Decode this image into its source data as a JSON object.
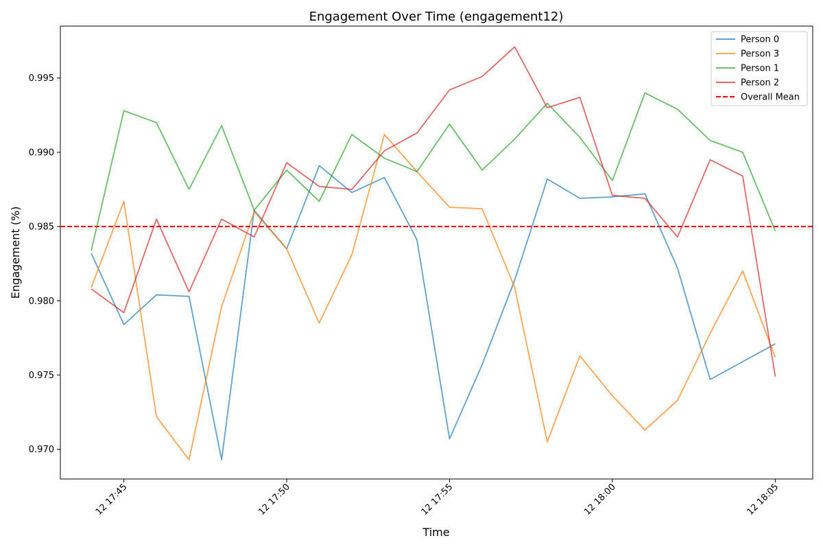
{
  "chart_data": {
    "type": "line",
    "title": "Engagement Over Time (engagement12)",
    "xlabel": "Time",
    "ylabel": "Engagement (%)",
    "x_minutes": [
      44,
      45,
      46,
      47,
      48,
      49,
      50,
      51,
      52,
      53,
      54,
      55,
      56,
      57,
      58,
      59,
      60,
      61,
      62,
      63,
      64,
      65
    ],
    "xlim": [
      43.05,
      66.15
    ],
    "ylim": [
      0.968,
      0.9985
    ],
    "x_ticks": [
      {
        "minute": 45,
        "label": "12 17:45"
      },
      {
        "minute": 50,
        "label": "12 17:50"
      },
      {
        "minute": 55,
        "label": "12 17:55"
      },
      {
        "minute": 60,
        "label": "12 18:00"
      },
      {
        "minute": 65,
        "label": "12 18:05"
      }
    ],
    "y_ticks": [
      {
        "value": 0.97,
        "label": "0.970"
      },
      {
        "value": 0.975,
        "label": "0.975"
      },
      {
        "value": 0.98,
        "label": "0.980"
      },
      {
        "value": 0.985,
        "label": "0.985"
      },
      {
        "value": 0.99,
        "label": "0.990"
      },
      {
        "value": 0.995,
        "label": "0.995"
      }
    ],
    "series": [
      {
        "name": "Person 0",
        "color": "#1f77b4",
        "values": [
          0.9832,
          0.9784,
          0.9804,
          0.9803,
          0.9693,
          0.9861,
          0.9835,
          0.9891,
          0.9873,
          0.9883,
          0.9841,
          0.9707,
          0.9757,
          0.9814,
          0.9882,
          0.9869,
          0.987,
          0.9872,
          0.9822,
          0.9747,
          0.9759,
          0.9771
        ]
      },
      {
        "name": "Person 3",
        "color": "#ff7f0e",
        "values": [
          0.9809,
          0.9867,
          0.9722,
          0.9693,
          0.9796,
          0.986,
          0.9835,
          0.9785,
          0.9831,
          0.9912,
          0.9887,
          0.9863,
          0.9862,
          0.9809,
          0.9705,
          0.9763,
          0.9736,
          0.9713,
          0.9733,
          0.9778,
          0.982,
          0.9762
        ]
      },
      {
        "name": "Person 1",
        "color": "#2ca02c",
        "values": [
          0.9834,
          0.9928,
          0.992,
          0.9875,
          0.9918,
          0.9861,
          0.9888,
          0.9867,
          0.9912,
          0.9896,
          0.9887,
          0.9919,
          0.9888,
          0.9909,
          0.9933,
          0.991,
          0.9881,
          0.994,
          0.9929,
          0.9908,
          0.99,
          0.9847
        ]
      },
      {
        "name": "Person 2",
        "color": "#d62728",
        "values": [
          0.9808,
          0.9792,
          0.9855,
          0.9806,
          0.9855,
          0.9843,
          0.9893,
          0.9877,
          0.9875,
          0.9901,
          0.9913,
          0.9942,
          0.9951,
          0.9971,
          0.993,
          0.9937,
          0.9871,
          0.9869,
          0.9843,
          0.9895,
          0.9884,
          0.9749
        ]
      }
    ],
    "mean_line": {
      "name": "Overall Mean",
      "value": 0.985,
      "color": "#ff0000"
    },
    "legend": "top-right"
  }
}
